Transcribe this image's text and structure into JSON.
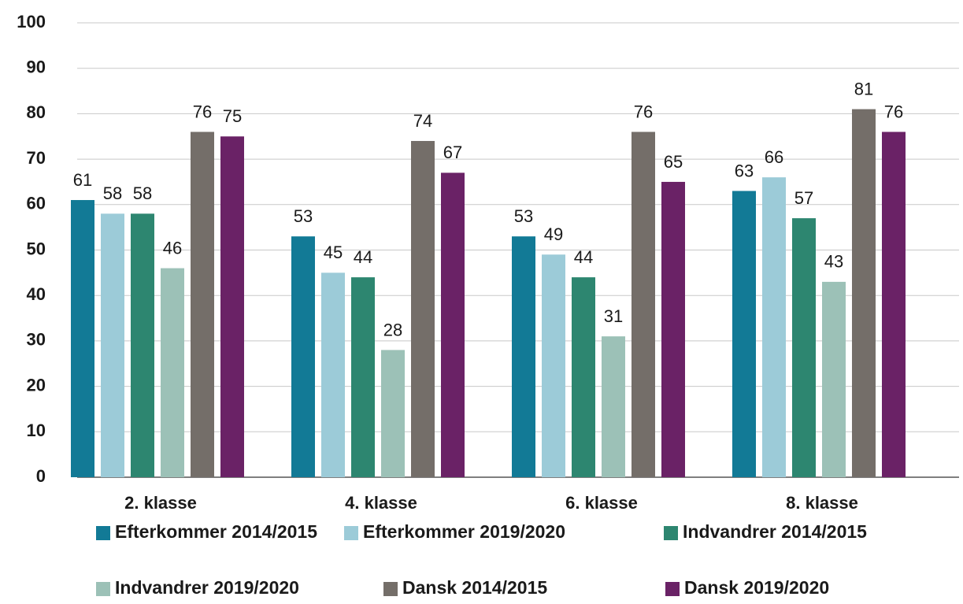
{
  "chart_data": {
    "type": "bar",
    "categories": [
      "2. klasse",
      "4. klasse",
      "6. klasse",
      "8. klasse"
    ],
    "series": [
      {
        "name": "Efterkommer 2014/2015",
        "color": "#127a96",
        "values": [
          61,
          53,
          53,
          63
        ]
      },
      {
        "name": "Efterkommer 2019/2020",
        "color": "#9ccbd8",
        "values": [
          58,
          45,
          49,
          66
        ]
      },
      {
        "name": "Indvandrer 2014/2015",
        "color": "#2d8670",
        "values": [
          58,
          44,
          44,
          57
        ]
      },
      {
        "name": "Indvandrer 2019/2020",
        "color": "#9cc1b7",
        "values": [
          46,
          28,
          31,
          43
        ]
      },
      {
        "name": "Dansk 2014/2015",
        "color": "#746e69",
        "values": [
          76,
          74,
          76,
          81
        ]
      },
      {
        "name": "Dansk 2019/2020",
        "color": "#6a2266",
        "values": [
          75,
          67,
          65,
          76
        ]
      }
    ],
    "ylim": [
      0,
      100
    ],
    "yticks": [
      0,
      10,
      20,
      30,
      40,
      50,
      60,
      70,
      80,
      90,
      100
    ],
    "grid": true,
    "legend": "bottom"
  }
}
